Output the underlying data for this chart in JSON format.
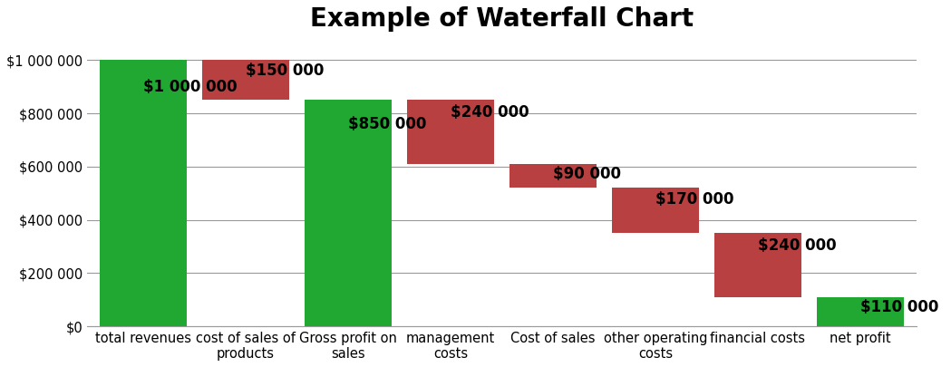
{
  "title": "Example of Waterfall Chart",
  "title_fontsize": 20,
  "title_fontweight": "bold",
  "categories": [
    "total revenues",
    "cost of sales of\nproducts",
    "Gross profit on\nsales",
    "management\ncosts",
    "Cost of sales",
    "other operating\ncosts",
    "financial costs",
    "net profit"
  ],
  "labels": [
    "$1 000 000",
    "$150 000",
    "$850 000",
    "$240 000",
    "$90 000",
    "$170 000",
    "$240 000",
    "$110 000"
  ],
  "bottoms": [
    0,
    850000,
    0,
    610000,
    520000,
    350000,
    110000,
    0
  ],
  "heights": [
    1000000,
    150000,
    850000,
    240000,
    90000,
    170000,
    240000,
    110000
  ],
  "colors": [
    "#21a832",
    "#b94040",
    "#21a832",
    "#b94040",
    "#b94040",
    "#b94040",
    "#b94040",
    "#21a832"
  ],
  "background_color": "#ffffff",
  "grid_color": "#999999",
  "ylim": [
    0,
    1080000
  ],
  "yticks": [
    0,
    200000,
    400000,
    600000,
    800000,
    1000000
  ],
  "ytick_labels": [
    "$0",
    "$200 000",
    "$400 000",
    "$600 000",
    "$800 000",
    "$1 000 000"
  ],
  "bar_width": 0.85,
  "label_fontsize": 12,
  "tick_fontsize": 10.5,
  "fig_width": 10.49,
  "fig_height": 4.05,
  "dpi": 100
}
